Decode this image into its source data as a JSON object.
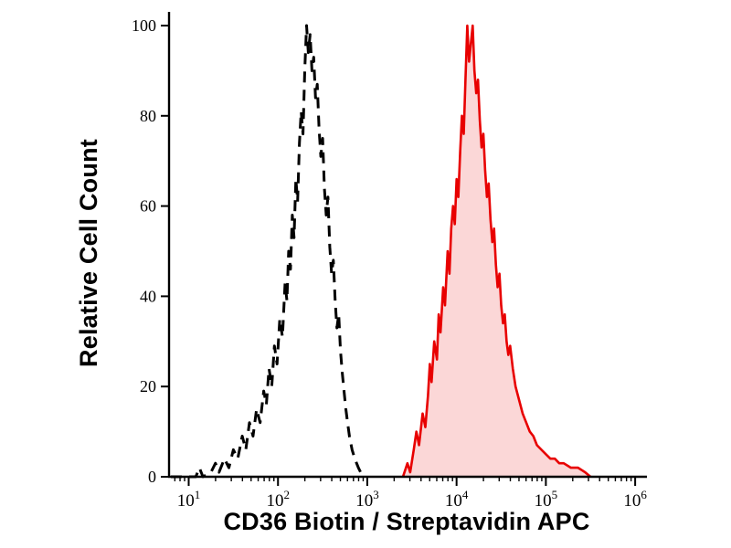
{
  "chart_data": {
    "type": "line",
    "subtype": "flow-cytometry-histogram",
    "title": "",
    "xlabel": "CD36 Biotin / Streptavidin APC",
    "ylabel": "Relative Cell Count",
    "x_scale": "log10",
    "x_range_log": [
      0.78,
      6.05
    ],
    "x_major_ticks_exp": [
      1,
      2,
      3,
      4,
      5,
      6
    ],
    "x_tick_base": "10",
    "ylim": [
      0,
      100
    ],
    "y_ticks": [
      0,
      20,
      40,
      60,
      80,
      100
    ],
    "grid": false,
    "legend": "none",
    "colors": {
      "axis": "#000000",
      "tick_label": "#000000",
      "dashed_curve": "#000000",
      "filled_curve_stroke": "#e80000",
      "filled_curve_fill": "#fbd7d7",
      "background": "#ffffff"
    },
    "series": [
      {
        "name": "black-dashed-histogram",
        "style": "dashed",
        "color": "#000000",
        "fill": "none",
        "points": [
          [
            0.8,
            0
          ],
          [
            1.08,
            0
          ],
          [
            1.12,
            2
          ],
          [
            1.16,
            0
          ],
          [
            1.25,
            1
          ],
          [
            1.3,
            3
          ],
          [
            1.34,
            1
          ],
          [
            1.4,
            4
          ],
          [
            1.45,
            2
          ],
          [
            1.5,
            6
          ],
          [
            1.55,
            4
          ],
          [
            1.6,
            9
          ],
          [
            1.64,
            6
          ],
          [
            1.68,
            12
          ],
          [
            1.72,
            9
          ],
          [
            1.76,
            15
          ],
          [
            1.8,
            12
          ],
          [
            1.84,
            19
          ],
          [
            1.87,
            16
          ],
          [
            1.9,
            24
          ],
          [
            1.93,
            20
          ],
          [
            1.96,
            29
          ],
          [
            1.99,
            25
          ],
          [
            2.02,
            35
          ],
          [
            2.05,
            31
          ],
          [
            2.08,
            43
          ],
          [
            2.1,
            39
          ],
          [
            2.12,
            50
          ],
          [
            2.14,
            46
          ],
          [
            2.16,
            58
          ],
          [
            2.18,
            53
          ],
          [
            2.2,
            66
          ],
          [
            2.22,
            61
          ],
          [
            2.24,
            74
          ],
          [
            2.26,
            81
          ],
          [
            2.28,
            76
          ],
          [
            2.3,
            90
          ],
          [
            2.32,
            100
          ],
          [
            2.34,
            94
          ],
          [
            2.36,
            98
          ],
          [
            2.38,
            90
          ],
          [
            2.4,
            93
          ],
          [
            2.42,
            84
          ],
          [
            2.44,
            87
          ],
          [
            2.46,
            77
          ],
          [
            2.48,
            71
          ],
          [
            2.5,
            75
          ],
          [
            2.52,
            64
          ],
          [
            2.54,
            58
          ],
          [
            2.56,
            62
          ],
          [
            2.58,
            51
          ],
          [
            2.6,
            45
          ],
          [
            2.62,
            48
          ],
          [
            2.64,
            39
          ],
          [
            2.66,
            33
          ],
          [
            2.68,
            36
          ],
          [
            2.7,
            28
          ],
          [
            2.72,
            23
          ],
          [
            2.74,
            19
          ],
          [
            2.76,
            15
          ],
          [
            2.78,
            12
          ],
          [
            2.8,
            9
          ],
          [
            2.83,
            6
          ],
          [
            2.86,
            4
          ],
          [
            2.9,
            2
          ],
          [
            2.95,
            0
          ]
        ]
      },
      {
        "name": "red-filled-histogram",
        "style": "solid",
        "color": "#e80000",
        "fill": "#fbd7d7",
        "points": [
          [
            3.4,
            0
          ],
          [
            3.45,
            3
          ],
          [
            3.48,
            1
          ],
          [
            3.52,
            6
          ],
          [
            3.55,
            10
          ],
          [
            3.58,
            7
          ],
          [
            3.62,
            14
          ],
          [
            3.65,
            11
          ],
          [
            3.68,
            18
          ],
          [
            3.7,
            25
          ],
          [
            3.72,
            21
          ],
          [
            3.75,
            30
          ],
          [
            3.78,
            26
          ],
          [
            3.8,
            36
          ],
          [
            3.82,
            32
          ],
          [
            3.85,
            42
          ],
          [
            3.87,
            38
          ],
          [
            3.9,
            50
          ],
          [
            3.92,
            45
          ],
          [
            3.94,
            55
          ],
          [
            3.96,
            60
          ],
          [
            3.98,
            56
          ],
          [
            4.0,
            66
          ],
          [
            4.02,
            62
          ],
          [
            4.04,
            72
          ],
          [
            4.06,
            80
          ],
          [
            4.08,
            76
          ],
          [
            4.1,
            88
          ],
          [
            4.12,
            100
          ],
          [
            4.14,
            92
          ],
          [
            4.16,
            96
          ],
          [
            4.18,
            100
          ],
          [
            4.2,
            90
          ],
          [
            4.22,
            85
          ],
          [
            4.24,
            88
          ],
          [
            4.26,
            79
          ],
          [
            4.28,
            73
          ],
          [
            4.3,
            76
          ],
          [
            4.32,
            68
          ],
          [
            4.34,
            62
          ],
          [
            4.36,
            65
          ],
          [
            4.38,
            57
          ],
          [
            4.4,
            52
          ],
          [
            4.42,
            55
          ],
          [
            4.44,
            47
          ],
          [
            4.46,
            42
          ],
          [
            4.48,
            45
          ],
          [
            4.5,
            38
          ],
          [
            4.52,
            34
          ],
          [
            4.54,
            36
          ],
          [
            4.56,
            30
          ],
          [
            4.58,
            27
          ],
          [
            4.6,
            29
          ],
          [
            4.63,
            24
          ],
          [
            4.66,
            20
          ],
          [
            4.7,
            17
          ],
          [
            4.74,
            14
          ],
          [
            4.78,
            12
          ],
          [
            4.82,
            10
          ],
          [
            4.86,
            9
          ],
          [
            4.9,
            7
          ],
          [
            4.95,
            6
          ],
          [
            5.0,
            5
          ],
          [
            5.05,
            4
          ],
          [
            5.1,
            4
          ],
          [
            5.15,
            3
          ],
          [
            5.2,
            3
          ],
          [
            5.28,
            2
          ],
          [
            5.36,
            2
          ],
          [
            5.44,
            1
          ],
          [
            5.5,
            0
          ]
        ]
      }
    ]
  }
}
